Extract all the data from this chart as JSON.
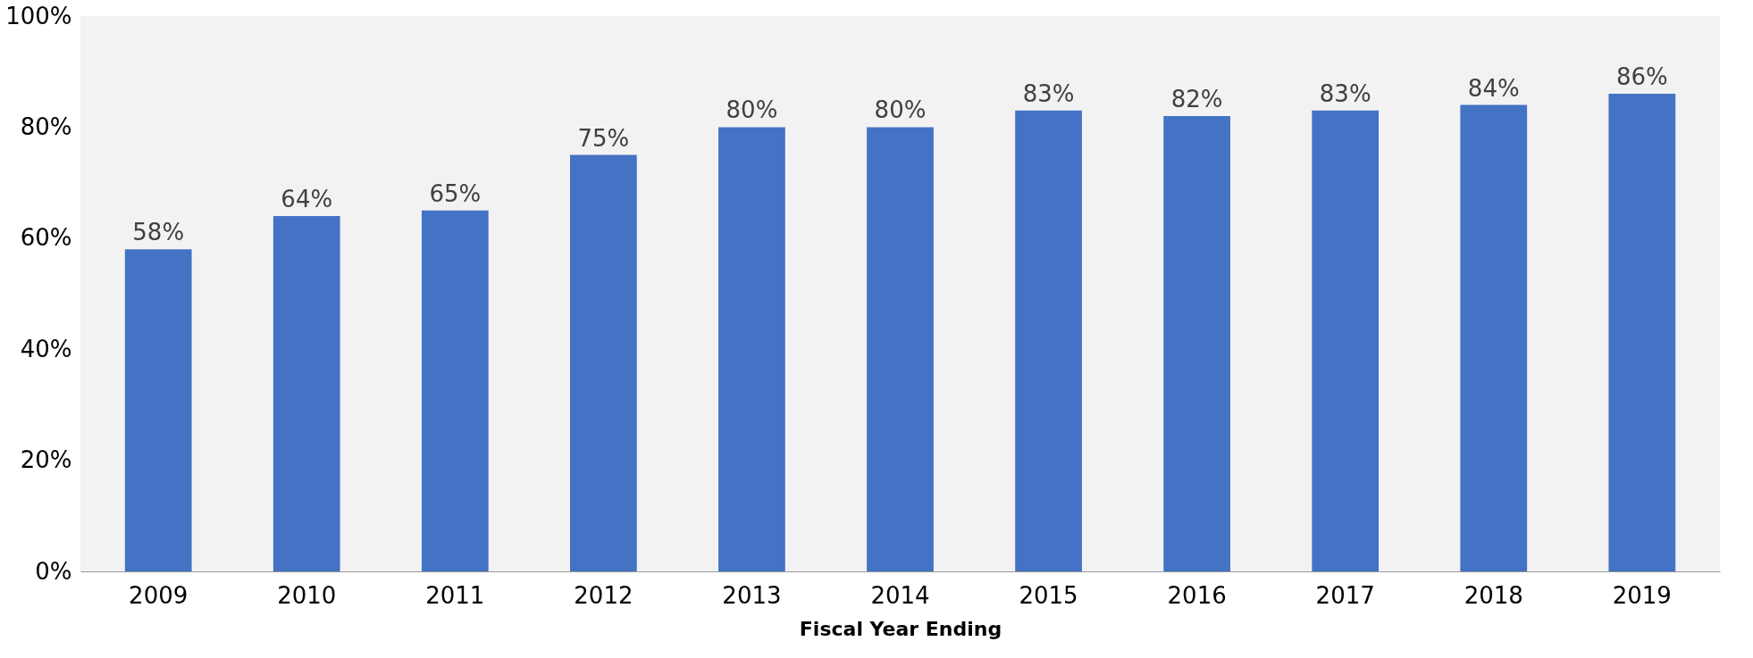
{
  "chart_data": {
    "type": "bar",
    "xlabel": "Fiscal Year Ending",
    "categories": [
      "2009",
      "2010",
      "2011",
      "2012",
      "2013",
      "2014",
      "2015",
      "2016",
      "2017",
      "2018",
      "2019"
    ],
    "values": [
      58,
      64,
      65,
      75,
      80,
      80,
      83,
      82,
      83,
      84,
      86
    ],
    "value_labels": [
      "58%",
      "64%",
      "65%",
      "75%",
      "80%",
      "80%",
      "83%",
      "82%",
      "83%",
      "84%",
      "86%"
    ],
    "color": "#4472c4",
    "ylim": [
      0,
      100
    ],
    "yticks": [
      {
        "value": 0,
        "label": "0%"
      },
      {
        "value": 20,
        "label": "20%"
      },
      {
        "value": 40,
        "label": "40%"
      },
      {
        "value": 60,
        "label": "60%"
      },
      {
        "value": 80,
        "label": "80%"
      },
      {
        "value": 100,
        "label": "100%"
      }
    ],
    "grid": false
  }
}
